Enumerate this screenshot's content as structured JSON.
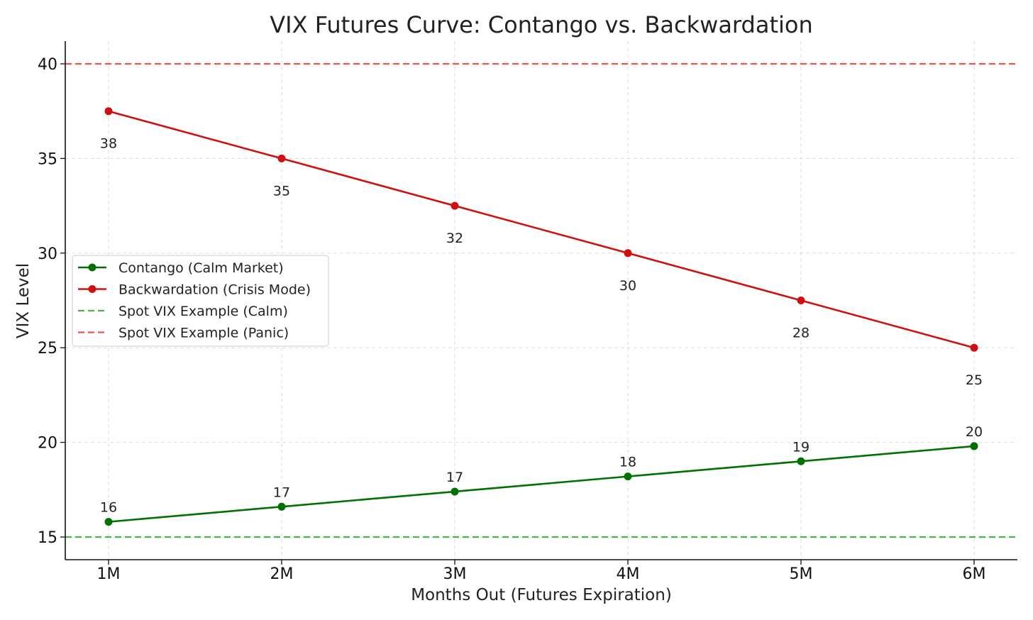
{
  "chart_data": {
    "type": "line",
    "title": "VIX Futures Curve: Contango vs. Backwardation",
    "xlabel": "Months Out (Futures Expiration)",
    "ylabel": "VIX Level",
    "categories": [
      "1M",
      "2M",
      "3M",
      "4M",
      "5M",
      "6M"
    ],
    "ylim": [
      13.8,
      41.2
    ],
    "yticks": [
      15,
      20,
      25,
      30,
      35,
      40
    ],
    "grid": true,
    "legend_position": "center-left",
    "series": [
      {
        "name": "Contango (Calm Market)",
        "color": "#007000",
        "marker": "circle",
        "values": [
          15.8,
          16.6,
          17.4,
          18.2,
          19.0,
          19.8
        ],
        "labels": [
          "16",
          "17",
          "17",
          "18",
          "19",
          "20"
        ],
        "label_position": "above"
      },
      {
        "name": "Backwardation (Crisis Mode)",
        "color": "#d01010",
        "marker": "circle",
        "values": [
          37.5,
          35.0,
          32.5,
          30.0,
          27.5,
          25.0
        ],
        "labels": [
          "38",
          "35",
          "32",
          "30",
          "28",
          "25"
        ],
        "label_position": "below"
      }
    ],
    "reference_lines": [
      {
        "name": "Spot VIX Example (Calm)",
        "value": 15,
        "color": "#4caf50",
        "style": "dashed"
      },
      {
        "name": "Spot VIX Example (Panic)",
        "value": 40,
        "color": "#ef5350",
        "style": "dashed"
      }
    ]
  }
}
